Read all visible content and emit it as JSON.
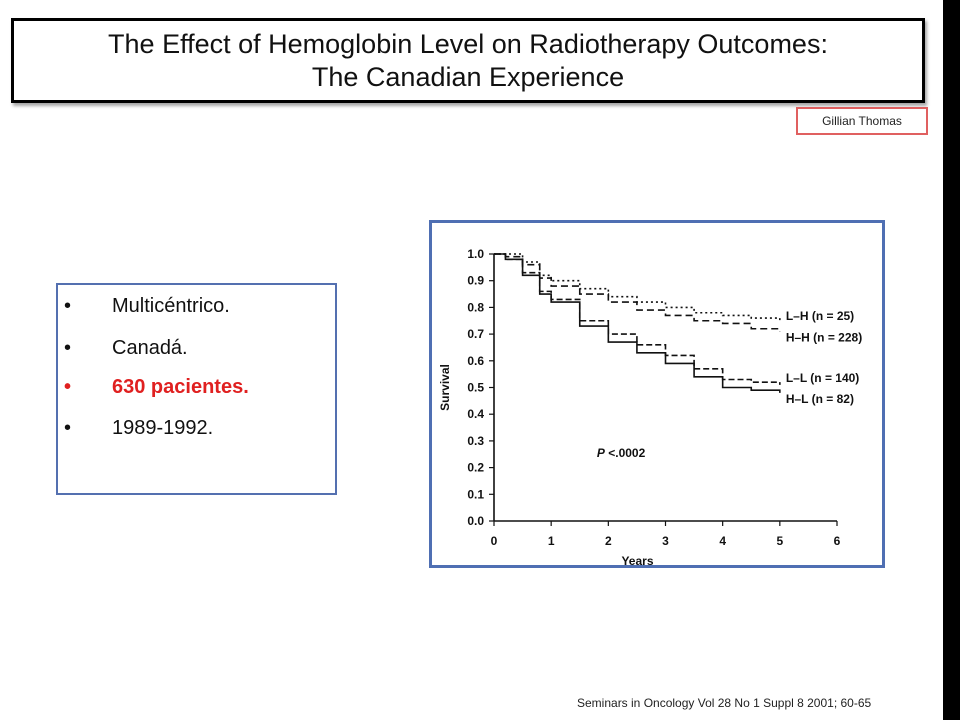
{
  "slide": {
    "title_line1": "The Effect of Hemoglobin Level on Radiotherapy Outcomes:",
    "title_line2": "The Canadian Experience",
    "author": "Gillian Thomas",
    "bullets": [
      {
        "marker": "•",
        "text": "Multicéntrico."
      },
      {
        "marker": "•",
        "text": "Canadá."
      },
      {
        "marker": "•",
        "text": "630 pacientes."
      },
      {
        "marker": "•",
        "text": "1989-1992."
      }
    ],
    "highlight_color": "#e02020",
    "footer": "Seminars in Oncology Vol 28 No 1 Suppl 8 2001; 60-65"
  },
  "chart_data": {
    "type": "line",
    "title": "",
    "xlabel": "Years",
    "ylabel": "Survival",
    "xlim": [
      0,
      6
    ],
    "ylim": [
      0,
      1.0
    ],
    "x_ticks": [
      "0",
      "1",
      "2",
      "3",
      "4",
      "5",
      "6"
    ],
    "y_ticks": [
      "0.0",
      "0.1",
      "0.2",
      "0.3",
      "0.4",
      "0.5",
      "0.6",
      "0.7",
      "0.8",
      "0.9",
      "1.0"
    ],
    "annotation": {
      "italic": "P",
      "text": " <.0002"
    },
    "series": [
      {
        "name": "L–H (n = 25)",
        "dash": "2,3",
        "x": [
          0,
          0.2,
          0.5,
          0.8,
          1.0,
          1.5,
          2.0,
          2.5,
          3.0,
          3.5,
          4.0,
          4.5,
          5.0
        ],
        "y": [
          1.0,
          1.0,
          0.97,
          0.92,
          0.9,
          0.87,
          0.84,
          0.82,
          0.8,
          0.78,
          0.77,
          0.76,
          0.75
        ]
      },
      {
        "name": "H–H (n = 228)",
        "dash": "7,4",
        "x": [
          0,
          0.2,
          0.5,
          0.8,
          1.0,
          1.5,
          2.0,
          2.5,
          3.0,
          3.5,
          4.0,
          4.5,
          5.0
        ],
        "y": [
          1.0,
          0.99,
          0.96,
          0.91,
          0.88,
          0.85,
          0.82,
          0.79,
          0.77,
          0.75,
          0.74,
          0.72,
          0.71
        ]
      },
      {
        "name": "L–L (n = 140)",
        "dash": "6,3",
        "x": [
          0,
          0.2,
          0.5,
          0.8,
          1.0,
          1.5,
          2.0,
          2.5,
          3.0,
          3.5,
          4.0,
          4.5,
          5.0
        ],
        "y": [
          1.0,
          0.98,
          0.93,
          0.86,
          0.83,
          0.75,
          0.7,
          0.66,
          0.62,
          0.57,
          0.53,
          0.52,
          0.51
        ]
      },
      {
        "name": "H–L (n = 82)",
        "dash": "",
        "x": [
          0,
          0.2,
          0.5,
          0.8,
          1.0,
          1.5,
          2.0,
          2.5,
          3.0,
          3.5,
          4.0,
          4.5,
          5.0
        ],
        "y": [
          1.0,
          0.98,
          0.92,
          0.85,
          0.82,
          0.73,
          0.67,
          0.63,
          0.59,
          0.54,
          0.5,
          0.49,
          0.48
        ]
      }
    ]
  }
}
